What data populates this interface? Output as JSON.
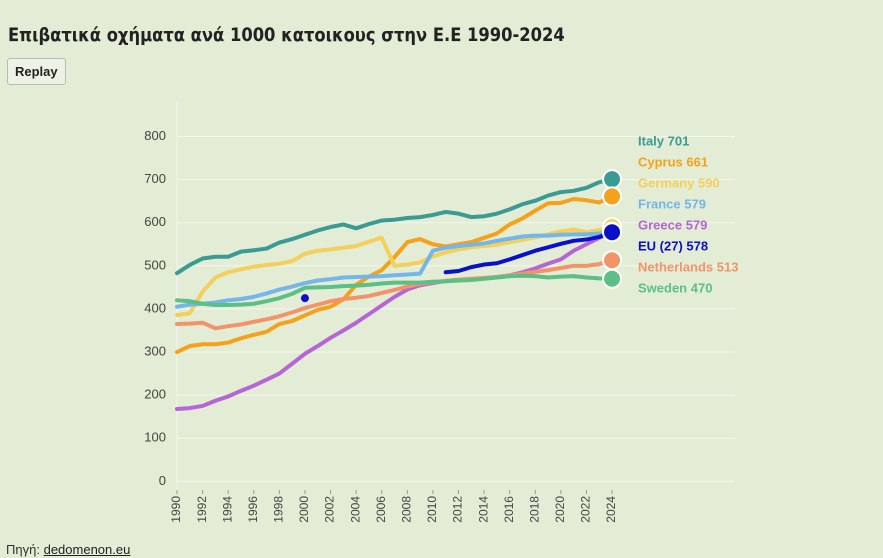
{
  "chart_data": {
    "type": "line",
    "title": "Επιβατικά οχήματα ανά 1000 κατοικους στην Ε.Ε 1990-2024",
    "button": "Replay",
    "source_label": "Πηγή:",
    "source": "dedomenon.eu",
    "x": [
      1990,
      1991,
      1992,
      1993,
      1994,
      1995,
      1996,
      1997,
      1998,
      1999,
      2000,
      2001,
      2002,
      2003,
      2004,
      2005,
      2006,
      2007,
      2008,
      2009,
      2010,
      2011,
      2012,
      2013,
      2014,
      2015,
      2016,
      2017,
      2018,
      2019,
      2020,
      2021,
      2022,
      2023,
      2024
    ],
    "xlim": [
      1990,
      2034
    ],
    "xticks": [
      1990,
      1992,
      1994,
      1996,
      1998,
      2000,
      2002,
      2004,
      2006,
      2008,
      2010,
      2012,
      2014,
      2016,
      2018,
      2020,
      2022,
      2024
    ],
    "ylim": [
      -20,
      880
    ],
    "yticks": [
      0,
      100,
      200,
      300,
      400,
      500,
      600,
      700,
      800
    ],
    "grid": true,
    "series": [
      {
        "name": "Italy 701",
        "color": "#3a9a94",
        "values": [
          483,
          502,
          517,
          521,
          521,
          533,
          536,
          540,
          554,
          562,
          572,
          582,
          590,
          596,
          587,
          597,
          605,
          607,
          611,
          613,
          618,
          625,
          621,
          613,
          615,
          621,
          631,
          643,
          651,
          663,
          671,
          674,
          681,
          694,
          701
        ]
      },
      {
        "name": "Cyprus 661",
        "color": "#f5a21a",
        "values": [
          300,
          314,
          318,
          318,
          322,
          332,
          340,
          347,
          365,
          372,
          385,
          398,
          405,
          422,
          456,
          475,
          490,
          520,
          555,
          562,
          550,
          545,
          550,
          555,
          565,
          575,
          596,
          610,
          628,
          645,
          646,
          655,
          652,
          647,
          661
        ]
      },
      {
        "name": "Germany 590",
        "color": "#f3cf5c",
        "values": [
          386,
          390,
          440,
          473,
          485,
          492,
          498,
          502,
          505,
          511,
          528,
          535,
          538,
          542,
          546,
          556,
          565,
          500,
          503,
          508,
          522,
          531,
          538,
          543,
          546,
          549,
          555,
          560,
          566,
          573,
          580,
          584,
          578,
          583,
          590
        ]
      },
      {
        "name": "France 579",
        "color": "#74b6ea",
        "values": [
          405,
          410,
          412,
          415,
          420,
          423,
          428,
          436,
          445,
          452,
          460,
          466,
          469,
          473,
          474,
          475,
          476,
          478,
          480,
          482,
          535,
          542,
          546,
          549,
          552,
          558,
          563,
          568,
          570,
          570,
          572,
          573,
          573,
          575,
          579
        ]
      },
      {
        "name": "Greece 579",
        "color": "#b565d4",
        "values": [
          168,
          170,
          175,
          187,
          197,
          210,
          222,
          236,
          250,
          273,
          296,
          314,
          333,
          350,
          368,
          388,
          408,
          428,
          445,
          455,
          460,
          465,
          467,
          469,
          471,
          474,
          478,
          485,
          494,
          505,
          515,
          535,
          550,
          565,
          579
        ]
      },
      {
        "name": "EU (27) 578",
        "color": "#0a10c7",
        "values": [
          null,
          null,
          null,
          null,
          null,
          null,
          null,
          null,
          null,
          null,
          425,
          null,
          null,
          null,
          null,
          null,
          null,
          null,
          null,
          null,
          null,
          485,
          488,
          497,
          503,
          506,
          515,
          525,
          535,
          543,
          551,
          558,
          561,
          567,
          578
        ]
      },
      {
        "name": "Netherlands 513",
        "color": "#f2946a",
        "values": [
          365,
          366,
          368,
          355,
          360,
          364,
          370,
          376,
          383,
          392,
          402,
          410,
          418,
          423,
          426,
          430,
          437,
          444,
          452,
          458,
          462,
          465,
          468,
          470,
          472,
          474,
          478,
          482,
          486,
          490,
          495,
          500,
          500,
          504,
          513
        ]
      },
      {
        "name": "Sweden 470",
        "color": "#5cbf85",
        "values": [
          420,
          418,
          412,
          409,
          409,
          410,
          412,
          418,
          425,
          435,
          449,
          450,
          451,
          453,
          454,
          456,
          459,
          461,
          461,
          461,
          463,
          464,
          466,
          467,
          470,
          473,
          476,
          477,
          476,
          473,
          475,
          476,
          473,
          471,
          470
        ]
      }
    ]
  }
}
